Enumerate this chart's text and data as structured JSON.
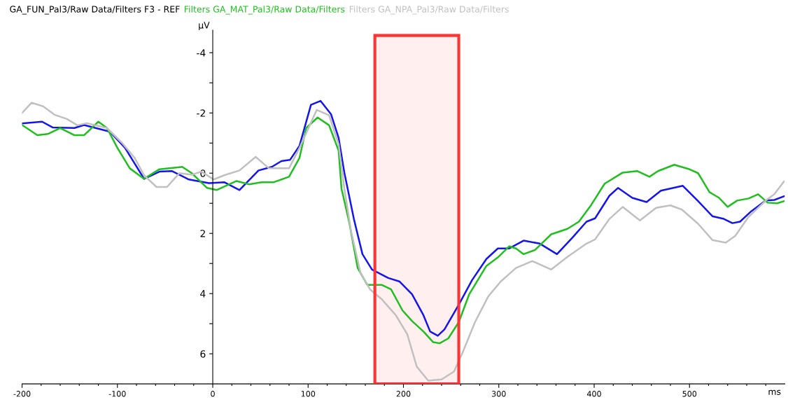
{
  "chart_data": {
    "type": "line",
    "title": "GA_FUN_Pal3/Raw Data/Filters F3 - REF",
    "xlabel": "ms",
    "ylabel": "µV",
    "xlim": [
      -200,
      600
    ],
    "ylim": [
      7,
      -4.75
    ],
    "xticks": [
      -200,
      {
        "value": -180,
        "label": null
      },
      {
        "value": -160,
        "label": null
      },
      {
        "value": -140,
        "label": null
      },
      {
        "value": -120,
        "label": null
      },
      -100,
      {
        "value": -80,
        "label": null
      },
      {
        "value": -60,
        "label": null
      },
      {
        "value": -40,
        "label": null
      },
      {
        "value": -20,
        "label": null
      },
      0,
      {
        "value": 20,
        "label": null
      },
      {
        "value": 40,
        "label": null
      },
      {
        "value": 60,
        "label": null
      },
      {
        "value": 80,
        "label": null
      },
      100,
      {
        "value": 120,
        "label": null
      },
      {
        "value": 140,
        "label": null
      },
      {
        "value": 160,
        "label": null
      },
      {
        "value": 180,
        "label": null
      },
      200,
      {
        "value": 220,
        "label": null
      },
      {
        "value": 240,
        "label": null
      },
      {
        "value": 260,
        "label": null
      },
      {
        "value": 280,
        "label": null
      },
      300,
      {
        "value": 320,
        "label": null
      },
      {
        "value": 340,
        "label": null
      },
      {
        "value": 360,
        "label": null
      },
      {
        "value": 380,
        "label": null
      },
      400,
      {
        "value": 420,
        "label": null
      },
      {
        "value": 440,
        "label": null
      },
      {
        "value": 460,
        "label": null
      },
      {
        "value": 480,
        "label": null
      },
      500,
      {
        "value": 520,
        "label": null
      },
      {
        "value": 540,
        "label": null
      },
      {
        "value": 560,
        "label": null
      },
      {
        "value": 580,
        "label": null
      }
    ],
    "yticks": [
      -4,
      {
        "value": -3,
        "label": null
      },
      -2,
      {
        "value": -1,
        "label": null
      },
      0,
      {
        "value": 1,
        "label": null
      },
      2,
      {
        "value": 3,
        "label": null
      },
      4,
      {
        "value": 5,
        "label": null
      },
      6
    ],
    "grid": false,
    "legend": false,
    "marker": "none",
    "line_style": "solid",
    "bands": [
      {
        "axis": "x",
        "from": 170,
        "to": 258,
        "color": "#ff3333"
      }
    ],
    "series": [
      {
        "color": "#1414f0",
        "x": [
          -200,
          -179,
          -168,
          -145,
          -135,
          -108,
          -92,
          -72,
          -56,
          -43,
          -25,
          -4,
          12,
          28,
          48,
          62,
          72,
          81,
          91,
          103,
          113,
          124,
          132,
          138,
          148,
          157,
          167,
          184,
          196,
          209,
          221,
          228,
          236,
          243,
          258,
          272,
          287,
          299,
          311,
          326,
          343,
          361,
          377,
          392,
          401,
          416,
          425,
          440,
          455,
          470,
          493,
          509,
          524,
          536,
          545,
          553,
          565,
          580,
          589,
          599
        ],
        "values": [
          -1.65,
          -1.71,
          -1.52,
          -1.5,
          -1.6,
          -1.38,
          -0.84,
          0.19,
          -0.05,
          -0.07,
          0.21,
          0.33,
          0.3,
          0.56,
          -0.09,
          -0.21,
          -0.4,
          -0.44,
          -0.91,
          -2.27,
          -2.4,
          -1.96,
          -1.17,
          -0.02,
          1.52,
          2.69,
          3.2,
          3.48,
          3.6,
          4.02,
          4.72,
          5.26,
          5.4,
          5.19,
          4.37,
          3.55,
          2.85,
          2.5,
          2.5,
          2.24,
          2.34,
          2.69,
          2.15,
          1.61,
          1.5,
          0.75,
          0.49,
          0.82,
          0.96,
          0.58,
          0.42,
          0.93,
          1.43,
          1.52,
          1.66,
          1.61,
          1.26,
          0.91,
          0.89,
          0.77
        ]
      },
      {
        "name": "Filters GA_MAT_Pal3/Raw Data/Filters",
        "color": "#1fbf1f",
        "x": [
          -200,
          -184,
          -173,
          -160,
          -145,
          -135,
          -120,
          -111,
          -100,
          -87,
          -72,
          -56,
          -32,
          -22,
          -6,
          4,
          25,
          38,
          51,
          64,
          80,
          91,
          98,
          110,
          122,
          132,
          135,
          143,
          152,
          162,
          177,
          187,
          199,
          209,
          221,
          231,
          238,
          247,
          258,
          269,
          287,
          299,
          311,
          318,
          326,
          338,
          355,
          372,
          384,
          397,
          411,
          430,
          445,
          458,
          467,
          484,
          499,
          509,
          521,
          531,
          540,
          550,
          562,
          572,
          582,
          592,
          599
        ],
        "values": [
          -1.6,
          -1.26,
          -1.3,
          -1.5,
          -1.26,
          -1.26,
          -1.71,
          -1.5,
          -0.84,
          -0.16,
          0.19,
          -0.13,
          -0.21,
          0,
          0.49,
          0.56,
          0.26,
          0.37,
          0.3,
          0.3,
          0.12,
          -0.51,
          -1.5,
          -1.85,
          -1.59,
          -0.75,
          0.51,
          1.61,
          3.15,
          3.71,
          3.71,
          3.86,
          4.56,
          4.91,
          5.26,
          5.61,
          5.65,
          5.49,
          4.95,
          4.02,
          3.08,
          2.8,
          2.43,
          2.5,
          2.69,
          2.55,
          2.03,
          1.85,
          1.61,
          1.05,
          0.35,
          -0.02,
          -0.07,
          0.12,
          -0.07,
          -0.28,
          -0.14,
          0,
          0.63,
          0.82,
          1.12,
          0.91,
          0.84,
          0.7,
          0.98,
          1.0,
          0.93
        ]
      },
      {
        "name": "Filters GA_NPA_Pal3/Raw Data/Filters",
        "color": "#c0c0c0",
        "x": [
          -200,
          -190,
          -178,
          -166,
          -153,
          -142,
          -132,
          -111,
          -95,
          -82,
          -72,
          -59,
          -48,
          -35,
          -22,
          -12,
          1,
          12,
          28,
          45,
          59,
          80,
          91,
          109,
          122,
          132,
          138,
          145,
          155,
          165,
          177,
          192,
          204,
          214,
          226,
          240,
          253,
          262,
          275,
          289,
          302,
          318,
          335,
          355,
          372,
          392,
          401,
          416,
          430,
          448,
          465,
          480,
          492,
          509,
          524,
          538,
          548,
          562,
          580,
          589,
          599
        ],
        "values": [
          -2.0,
          -2.34,
          -2.22,
          -1.94,
          -1.8,
          -1.59,
          -1.66,
          -1.5,
          -1.0,
          -0.51,
          0.07,
          0.46,
          0.46,
          0,
          0.05,
          -0.05,
          0.21,
          0.07,
          -0.09,
          -0.54,
          -0.16,
          -0.16,
          -0.84,
          -2.1,
          -1.92,
          -0.96,
          0.51,
          1.92,
          3.32,
          3.86,
          4.18,
          4.72,
          5.35,
          6.43,
          6.89,
          6.85,
          6.59,
          5.96,
          4.95,
          4.09,
          3.6,
          3.15,
          2.92,
          3.2,
          2.78,
          2.34,
          2.2,
          1.52,
          1.12,
          1.57,
          1.15,
          1.07,
          1.21,
          1.68,
          2.22,
          2.31,
          2.08,
          1.45,
          0.91,
          0.7,
          0.28
        ]
      }
    ]
  }
}
